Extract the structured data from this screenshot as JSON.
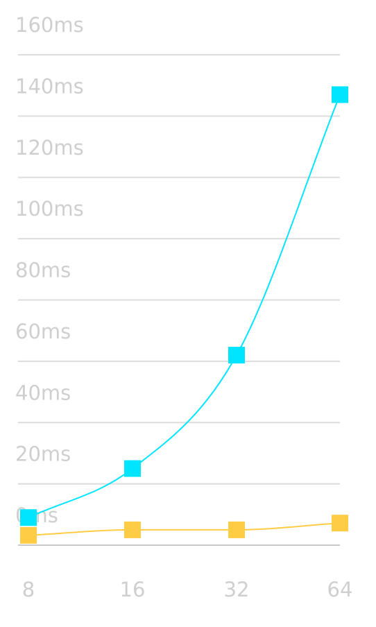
{
  "chart_data": {
    "type": "line",
    "title": "",
    "xlabel": "",
    "ylabel": "",
    "categories": [
      "8",
      "16",
      "32",
      "64"
    ],
    "y_ticks": [
      "0ms",
      "20ms",
      "40ms",
      "60ms",
      "80ms",
      "100ms",
      "120ms",
      "140ms",
      "160ms"
    ],
    "ylim": [
      0,
      160
    ],
    "y_tick_step": 20,
    "grid": true,
    "legend": "none",
    "series": [
      {
        "color": "#00e5ff",
        "marker": "square",
        "values": [
          9,
          25,
          62,
          147
        ]
      },
      {
        "color": "#ffcc44",
        "marker": "square",
        "values": [
          3.2,
          5,
          5,
          7.2
        ]
      }
    ]
  }
}
